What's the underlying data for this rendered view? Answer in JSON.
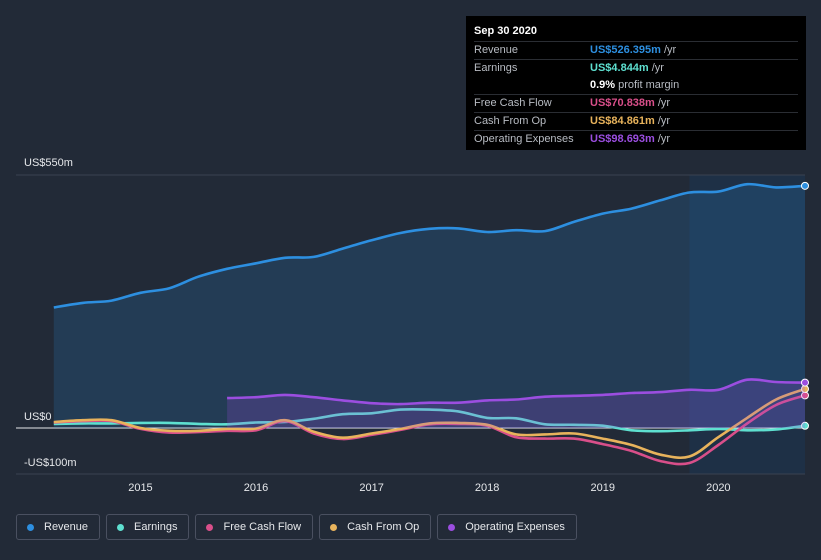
{
  "chart_data": {
    "type": "line",
    "title": "",
    "xlabel": "",
    "ylabel": "",
    "y_top_label": "US$550m",
    "y_zero_label": "US$0",
    "y_bottom_label": "-US$100m",
    "ylim": [
      -100,
      550
    ],
    "xlim": [
      2014.2,
      2020.75
    ],
    "x_ticks": [
      {
        "value": 2015,
        "label": "2015"
      },
      {
        "value": 2016,
        "label": "2016"
      },
      {
        "value": 2017,
        "label": "2017"
      },
      {
        "value": 2018,
        "label": "2018"
      },
      {
        "value": 2019,
        "label": "2019"
      },
      {
        "value": 2020,
        "label": "2020"
      }
    ],
    "forecast_start": 2019.75,
    "series": [
      {
        "name": "Revenue",
        "color": "#2d8fe0",
        "fill": true,
        "x": [
          2014.25,
          2014.5,
          2014.75,
          2015.0,
          2015.25,
          2015.5,
          2015.75,
          2016.0,
          2016.25,
          2016.5,
          2016.75,
          2017.0,
          2017.25,
          2017.5,
          2017.75,
          2018.0,
          2018.25,
          2018.5,
          2018.75,
          2019.0,
          2019.25,
          2019.5,
          2019.75,
          2020.0,
          2020.25,
          2020.5,
          2020.75
        ],
        "values": [
          262,
          272,
          277,
          294,
          304,
          329,
          346,
          358,
          370,
          372,
          390,
          408,
          424,
          433,
          434,
          426,
          430,
          428,
          448,
          466,
          477,
          495,
          512,
          514,
          530,
          523,
          526.395
        ]
      },
      {
        "name": "Earnings",
        "color": "#5ee0d0",
        "fill": false,
        "x": [
          2014.25,
          2014.5,
          2014.75,
          2015.0,
          2015.25,
          2015.5,
          2015.75,
          2016.0,
          2016.25,
          2016.5,
          2016.75,
          2017.0,
          2017.25,
          2017.5,
          2017.75,
          2018.0,
          2018.25,
          2018.5,
          2018.75,
          2019.0,
          2019.25,
          2019.5,
          2019.75,
          2020.0,
          2020.25,
          2020.5,
          2020.75
        ],
        "values": [
          9,
          10,
          10,
          11,
          11,
          9,
          8,
          12,
          13,
          20,
          30,
          32,
          40,
          40,
          36,
          22,
          21,
          8,
          7,
          5,
          -5,
          -7,
          -5,
          -2,
          -5,
          -3,
          4.844
        ]
      },
      {
        "name": "Free Cash Flow",
        "color": "#d94f8a",
        "fill": false,
        "x": [
          2014.25,
          2014.5,
          2014.75,
          2015.0,
          2015.25,
          2015.5,
          2015.75,
          2016.0,
          2016.25,
          2016.5,
          2016.75,
          2017.0,
          2017.25,
          2017.5,
          2017.75,
          2018.0,
          2018.25,
          2018.5,
          2018.75,
          2019.0,
          2019.25,
          2019.5,
          2019.75,
          2020.0,
          2020.25,
          2020.5,
          2020.75
        ],
        "values": [
          12,
          15,
          15,
          -2,
          -10,
          -9,
          -6,
          -5,
          15,
          -12,
          -24,
          -15,
          -4,
          8,
          9,
          5,
          -20,
          -23,
          -23,
          -35,
          -50,
          -72,
          -76,
          -37,
          10,
          50,
          70.838
        ]
      },
      {
        "name": "Cash From Op",
        "color": "#e8b35c",
        "fill": false,
        "x": [
          2014.25,
          2014.5,
          2014.75,
          2015.0,
          2015.25,
          2015.5,
          2015.75,
          2016.0,
          2016.25,
          2016.5,
          2016.75,
          2017.0,
          2017.25,
          2017.5,
          2017.75,
          2018.0,
          2018.25,
          2018.5,
          2018.75,
          2019.0,
          2019.25,
          2019.5,
          2019.75,
          2020.0,
          2020.25,
          2020.5,
          2020.75
        ],
        "values": [
          13,
          17,
          17,
          0,
          -6,
          -6,
          -2,
          -1,
          17,
          -8,
          -21,
          -12,
          -2,
          10,
          11,
          7,
          -14,
          -14,
          -12,
          -23,
          -37,
          -58,
          -62,
          -20,
          22,
          62,
          84.861
        ]
      },
      {
        "name": "Operating Expenses",
        "color": "#9b4ee0",
        "fill": true,
        "x": [
          2015.75,
          2016.0,
          2016.25,
          2016.5,
          2016.75,
          2017.0,
          2017.25,
          2017.5,
          2017.75,
          2018.0,
          2018.25,
          2018.5,
          2018.75,
          2019.0,
          2019.25,
          2019.5,
          2019.75,
          2020.0,
          2020.25,
          2020.5,
          2020.75
        ],
        "values": [
          65,
          67,
          72,
          67,
          60,
          54,
          52,
          55,
          55,
          60,
          62,
          68,
          70,
          72,
          76,
          78,
          83,
          83,
          105,
          100,
          98.693
        ]
      }
    ]
  },
  "tooltip": {
    "date": "Sep 30 2020",
    "rows": [
      {
        "label": "Revenue",
        "value": "US$526.395m",
        "unit": "/yr",
        "color": "#2d8fe0"
      },
      {
        "label": "Earnings",
        "value": "US$4.844m",
        "unit": "/yr",
        "color": "#5ee0d0"
      },
      {
        "label": "",
        "value": "0.9%",
        "unit": "profit margin",
        "color": "#ffffff"
      },
      {
        "label": "Free Cash Flow",
        "value": "US$70.838m",
        "unit": "/yr",
        "color": "#d94f8a"
      },
      {
        "label": "Cash From Op",
        "value": "US$84.861m",
        "unit": "/yr",
        "color": "#e8b35c"
      },
      {
        "label": "Operating Expenses",
        "value": "US$98.693m",
        "unit": "/yr",
        "color": "#9b4ee0"
      }
    ]
  },
  "legend": [
    {
      "label": "Revenue",
      "color": "#2d8fe0"
    },
    {
      "label": "Earnings",
      "color": "#5ee0d0"
    },
    {
      "label": "Free Cash Flow",
      "color": "#d94f8a"
    },
    {
      "label": "Cash From Op",
      "color": "#e8b35c"
    },
    {
      "label": "Operating Expenses",
      "color": "#9b4ee0"
    }
  ]
}
